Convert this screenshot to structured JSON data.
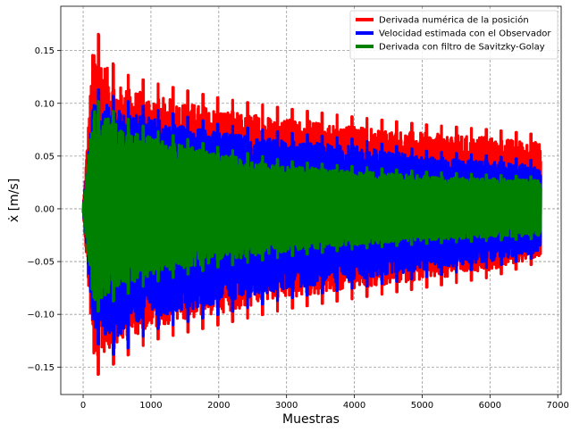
{
  "chart_data": {
    "type": "line",
    "title": "",
    "xlabel": "Muestras",
    "ylabel": "ẋ [m/s]",
    "xlim": [
      -330,
      7050
    ],
    "ylim": [
      -0.176,
      0.192
    ],
    "x_ticks": [
      0,
      1000,
      2000,
      3000,
      4000,
      5000,
      6000,
      7000
    ],
    "x_tick_labels": [
      "0",
      "1000",
      "2000",
      "3000",
      "4000",
      "5000",
      "6000",
      "7000"
    ],
    "y_ticks": [
      -0.15,
      -0.1,
      -0.05,
      0.0,
      0.05,
      0.1,
      0.15
    ],
    "y_tick_labels": [
      "−0.15",
      "−0.10",
      "−0.05",
      "0.00",
      "0.05",
      "0.10",
      "0.15"
    ],
    "grid": true,
    "legend_position": "top-right",
    "x_range": [
      0,
      6750
    ],
    "series": [
      {
        "name": "Derivada numérica de la posición",
        "color": "#ff0000",
        "envelope_x": [
          0,
          150,
          500,
          1000,
          2000,
          3000,
          4000,
          5000,
          6000,
          6750
        ],
        "envelope_upper": [
          0.0,
          0.175,
          0.13,
          0.12,
          0.105,
          0.095,
          0.087,
          0.08,
          0.075,
          0.07
        ],
        "envelope_lower": [
          0.0,
          -0.16,
          -0.145,
          -0.125,
          -0.11,
          -0.095,
          -0.085,
          -0.075,
          -0.065,
          -0.05
        ]
      },
      {
        "name": "Velocidad estimada con el Observador",
        "color": "#0000ff",
        "envelope_x": [
          0,
          150,
          500,
          1000,
          2000,
          3000,
          4000,
          5000,
          6000,
          6750
        ],
        "envelope_upper": [
          0.0,
          0.115,
          0.105,
          0.095,
          0.08,
          0.072,
          0.066,
          0.055,
          0.05,
          0.045
        ],
        "envelope_lower": [
          0.0,
          -0.125,
          -0.14,
          -0.115,
          -0.1,
          -0.085,
          -0.075,
          -0.065,
          -0.055,
          -0.045
        ]
      },
      {
        "name": "Derivada con filtro de Savitzky-Golay",
        "color": "#008000",
        "envelope_x": [
          0,
          150,
          500,
          1000,
          2000,
          3000,
          4000,
          5000,
          6000,
          6750
        ],
        "envelope_upper": [
          0.0,
          0.105,
          0.09,
          0.075,
          0.058,
          0.045,
          0.04,
          0.035,
          0.032,
          0.03
        ],
        "envelope_lower": [
          0.0,
          -0.1,
          -0.085,
          -0.07,
          -0.055,
          -0.045,
          -0.038,
          -0.033,
          -0.03,
          -0.028
        ]
      }
    ]
  }
}
